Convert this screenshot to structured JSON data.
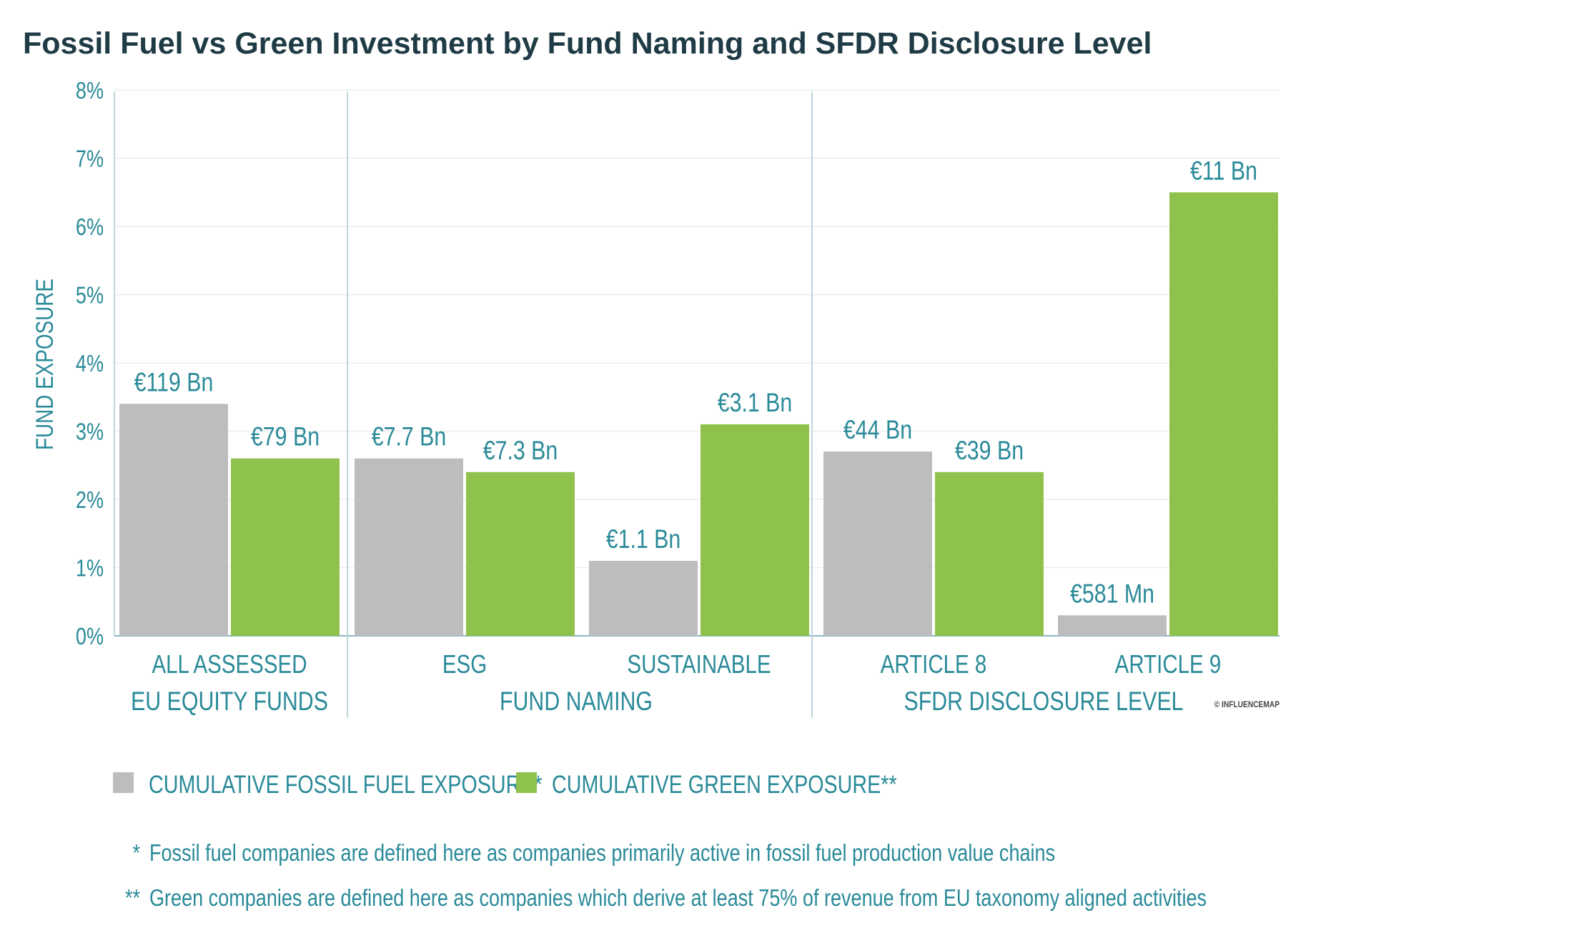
{
  "title": "Fossil Fuel vs Green Investment by Fund Naming and SFDR Disclosure Level",
  "chart_data": {
    "type": "bar",
    "ylabel": "FUND EXPOSURE",
    "ylim": [
      0,
      8
    ],
    "yticks": [
      "0%",
      "1%",
      "2%",
      "3%",
      "4%",
      "5%",
      "6%",
      "7%",
      "8%"
    ],
    "grid": true,
    "categories": [
      {
        "line1": "ALL ASSESSED",
        "line2": "EU EQUITY FUNDS"
      },
      {
        "line1": "ESG",
        "line2": ""
      },
      {
        "line1": "SUSTAINABLE",
        "line2": ""
      },
      {
        "line1": "ARTICLE 8",
        "line2": ""
      },
      {
        "line1": "ARTICLE 9",
        "line2": ""
      }
    ],
    "groups": [
      {
        "label": "FUND NAMING",
        "categories": [
          "ESG",
          "SUSTAINABLE"
        ]
      },
      {
        "label": "SFDR DISCLOSURE LEVEL",
        "categories": [
          "ARTICLE 8",
          "ARTICLE 9"
        ]
      }
    ],
    "series": [
      {
        "name": "CUMULATIVE FOSSIL FUEL EXPOSURE*",
        "color": "#bdbdbd",
        "values": [
          3.4,
          2.6,
          1.1,
          2.7,
          0.3
        ],
        "labels": [
          "€119 Bn",
          "€7.7 Bn",
          "€1.1 Bn",
          "€44 Bn",
          "€581 Mn"
        ]
      },
      {
        "name": "CUMULATIVE GREEN EXPOSURE**",
        "color": "#8fc24c",
        "values": [
          2.6,
          2.4,
          3.1,
          2.4,
          6.5
        ],
        "labels": [
          "€79 Bn",
          "€7.3 Bn",
          "€3.1 Bn",
          "€39 Bn",
          "€11 Bn"
        ]
      }
    ],
    "legend_position": "bottom-left"
  },
  "credit": "© INFLUENCEMAP",
  "footnotes": [
    {
      "mark": "*",
      "text": "Fossil fuel companies are defined here as companies primarily active in fossil fuel production value chains"
    },
    {
      "mark": "**",
      "text": "Green companies are defined here as companies which derive at least 75% of revenue from EU taxonomy aligned activities"
    }
  ],
  "colors": {
    "title": "#1f3b45",
    "accent": "#2a8a98",
    "fossil": "#bdbdbd",
    "green": "#8fc24c"
  }
}
